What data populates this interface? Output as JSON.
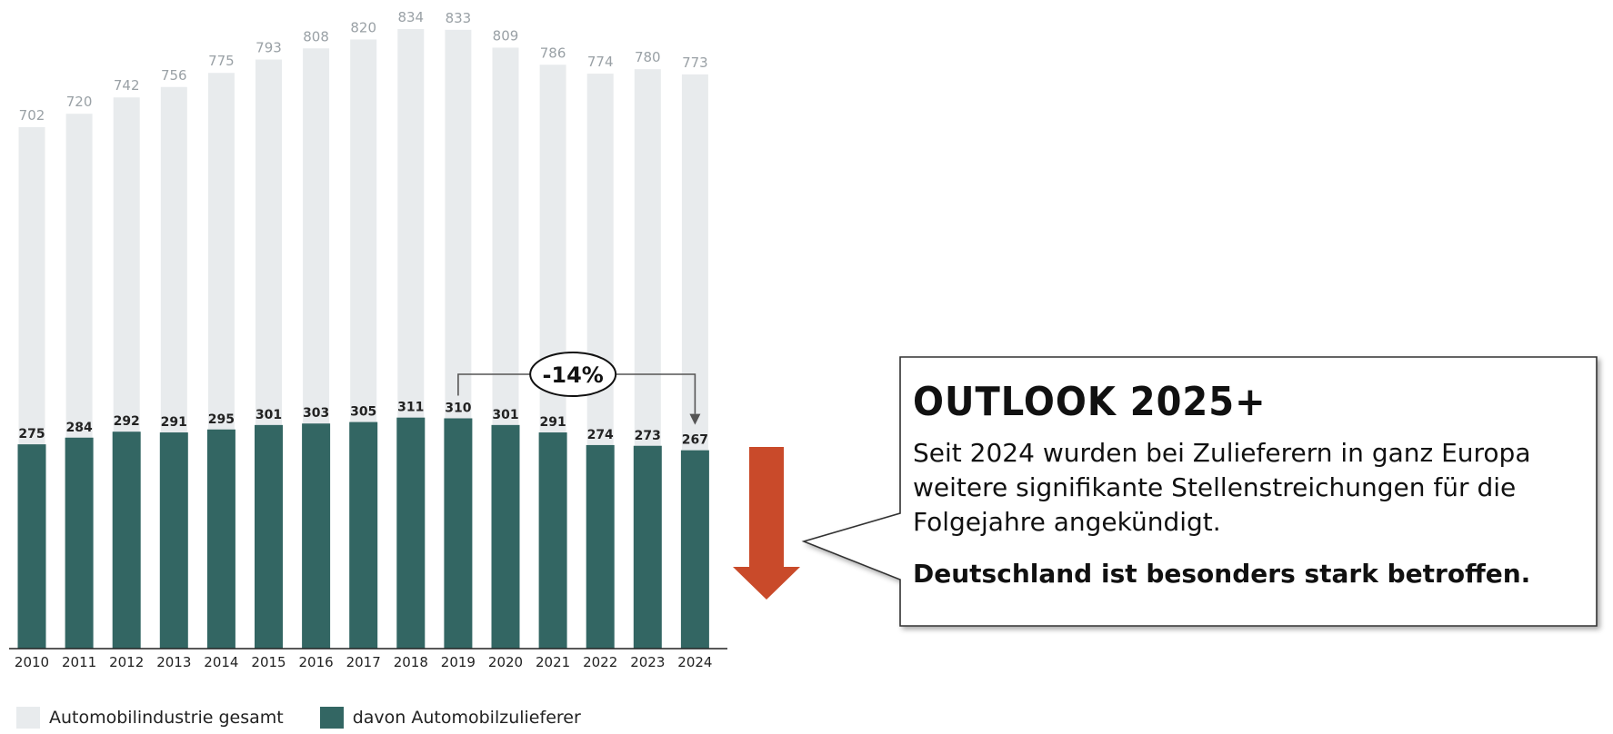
{
  "chart_data": {
    "type": "bar",
    "categories": [
      "2010",
      "2011",
      "2012",
      "2013",
      "2014",
      "2015",
      "2016",
      "2017",
      "2018",
      "2019",
      "2020",
      "2021",
      "2022",
      "2023",
      "2024"
    ],
    "series": [
      {
        "name": "Automobilindustrie gesamt",
        "values": [
          702,
          720,
          742,
          756,
          775,
          793,
          808,
          820,
          834,
          833,
          809,
          786,
          774,
          780,
          773
        ],
        "color": "#e8ebed"
      },
      {
        "name": "davon Automobilzulieferer",
        "values": [
          275,
          284,
          292,
          291,
          295,
          301,
          303,
          305,
          311,
          310,
          301,
          291,
          274,
          273,
          267
        ],
        "color": "#336663"
      }
    ],
    "ylim": [
      0,
      834
    ],
    "annotation": {
      "label": "-14%",
      "from": "2019",
      "to": "2024"
    },
    "arrow_color": "#c94a2a"
  },
  "legend": {
    "total_label": "Automobilindustrie gesamt",
    "supplier_label": "davon Automobilzulieferer"
  },
  "outlook": {
    "title": "OUTLOOK 2025+",
    "body": "Seit 2024 wurden bei Zulieferern in ganz Europa weitere signifikante Stellenstreichungen für die Folgejahre angekündigt.",
    "emphasis": "Deutschland ist besonders stark betroffen."
  }
}
